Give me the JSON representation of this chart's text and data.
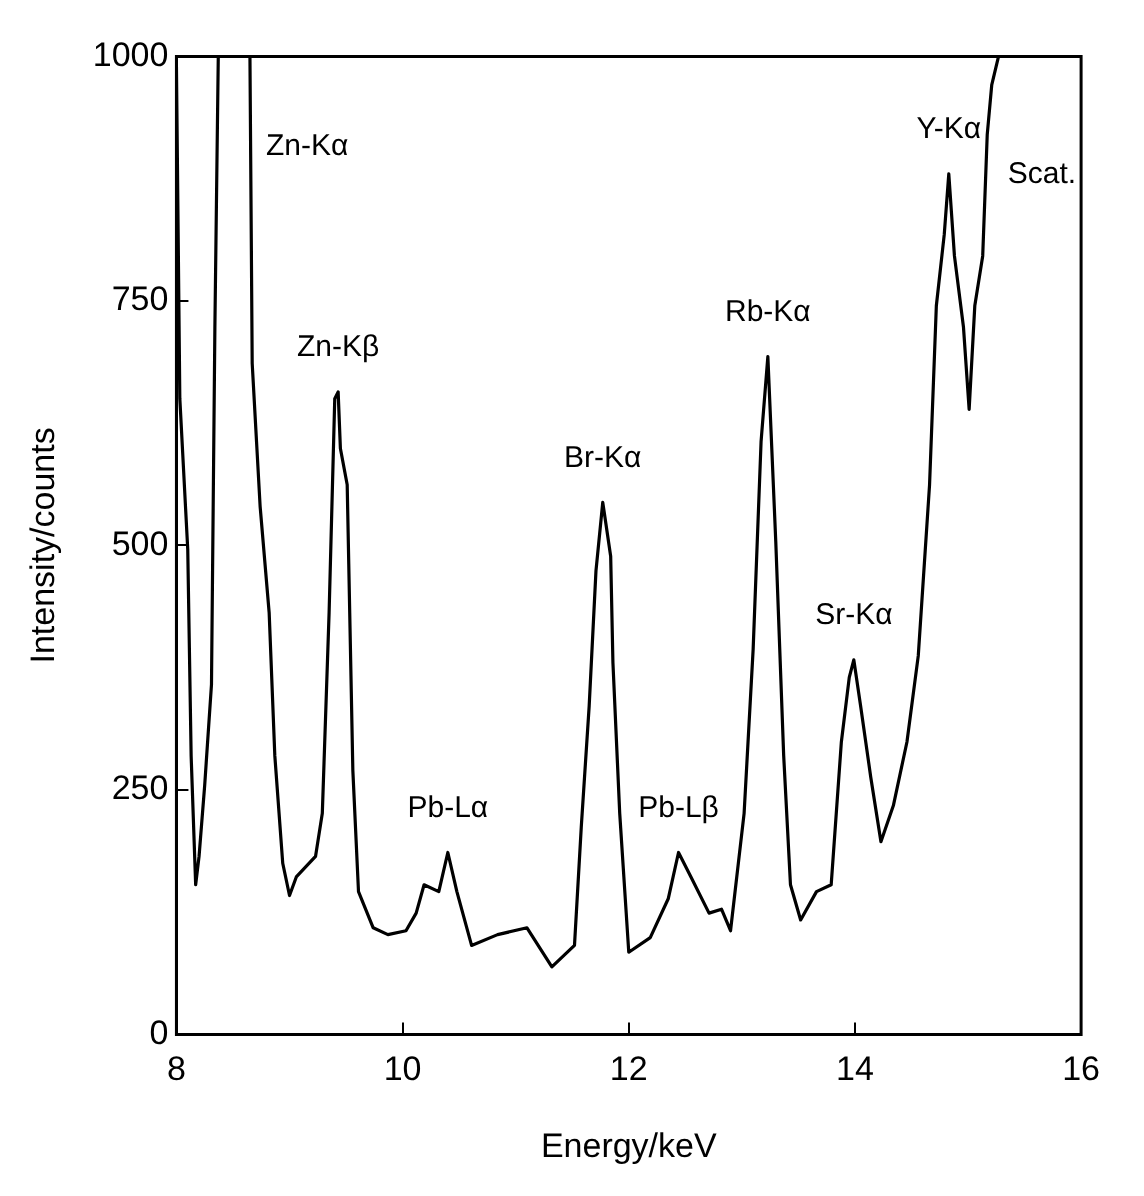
{
  "chart_data": {
    "type": "line",
    "xlabel": "Energy/keV",
    "ylabel": "Intensity/counts",
    "xlim": [
      8,
      16
    ],
    "xticks": [
      8,
      10,
      12,
      14,
      16
    ],
    "ylim": [
      0,
      1000
    ],
    "yticks": [
      0,
      250,
      500,
      750,
      1000
    ],
    "grid": false,
    "marker": "none",
    "line_style": "solid",
    "series": [
      {
        "color": "#000000",
        "x": [
          8.0,
          8.03,
          8.1,
          8.13,
          8.17,
          8.2,
          8.25,
          8.31,
          8.34,
          8.37,
          8.5,
          8.65,
          8.67,
          8.74,
          8.82,
          8.87,
          8.94,
          9.0,
          9.06,
          9.23,
          9.29,
          9.35,
          9.4,
          9.43,
          9.45,
          9.51,
          9.56,
          9.61,
          9.74,
          9.87,
          10.03,
          10.12,
          10.19,
          10.32,
          10.4,
          10.48,
          10.61,
          10.84,
          11.1,
          11.32,
          11.52,
          11.58,
          11.65,
          11.71,
          11.77,
          11.84,
          11.86,
          11.92,
          12.0,
          12.19,
          12.35,
          12.44,
          12.55,
          12.71,
          12.82,
          12.9,
          13.02,
          13.1,
          13.17,
          13.23,
          13.3,
          13.37,
          13.43,
          13.52,
          13.66,
          13.79,
          13.88,
          13.95,
          13.99,
          14.05,
          14.14,
          14.23,
          14.34,
          14.46,
          14.56,
          14.66,
          14.72,
          14.79,
          14.83,
          14.88,
          14.96,
          15.01,
          15.06,
          15.13,
          15.17,
          15.21,
          15.27
        ],
        "values": [
          990,
          650,
          496,
          285,
          153,
          182,
          255,
          358,
          723,
          1000,
          null,
          1000,
          686,
          540,
          431,
          285,
          175,
          142,
          161,
          182,
          226,
          431,
          650,
          657,
          599,
          562,
          270,
          146,
          109,
          102,
          106,
          124,
          153,
          146,
          186,
          146,
          91,
          102,
          109,
          69,
          91,
          212,
          336,
          474,
          544,
          489,
          380,
          226,
          84,
          99,
          139,
          186,
          161,
          124,
          128,
          106,
          226,
          394,
          606,
          693,
          504,
          285,
          153,
          117,
          146,
          153,
          299,
          365,
          383,
          336,
          263,
          197,
          234,
          299,
          387,
          562,
          745,
          818,
          880,
          796,
          723,
          639,
          745,
          796,
          920,
          971,
          1000
        ]
      }
    ],
    "annotations": [
      {
        "text": "Zn-Kα",
        "x": 8.65,
        "y": 1000
      },
      {
        "text": "Zn-Kβ",
        "x": 9.43,
        "y": 657
      },
      {
        "text": "Pb-Lα",
        "x": 10.4,
        "y": 186
      },
      {
        "text": "Br-Kα",
        "x": 11.77,
        "y": 544
      },
      {
        "text": "Pb-Lβ",
        "x": 12.44,
        "y": 186
      },
      {
        "text": "Rb-Kα",
        "x": 13.23,
        "y": 693
      },
      {
        "text": "Sr-Kα",
        "x": 13.99,
        "y": 383
      },
      {
        "text": "Y-Kα",
        "x": 14.83,
        "y": 880
      },
      {
        "text": "Scat.",
        "x": 15.21,
        "y": 971
      }
    ]
  }
}
